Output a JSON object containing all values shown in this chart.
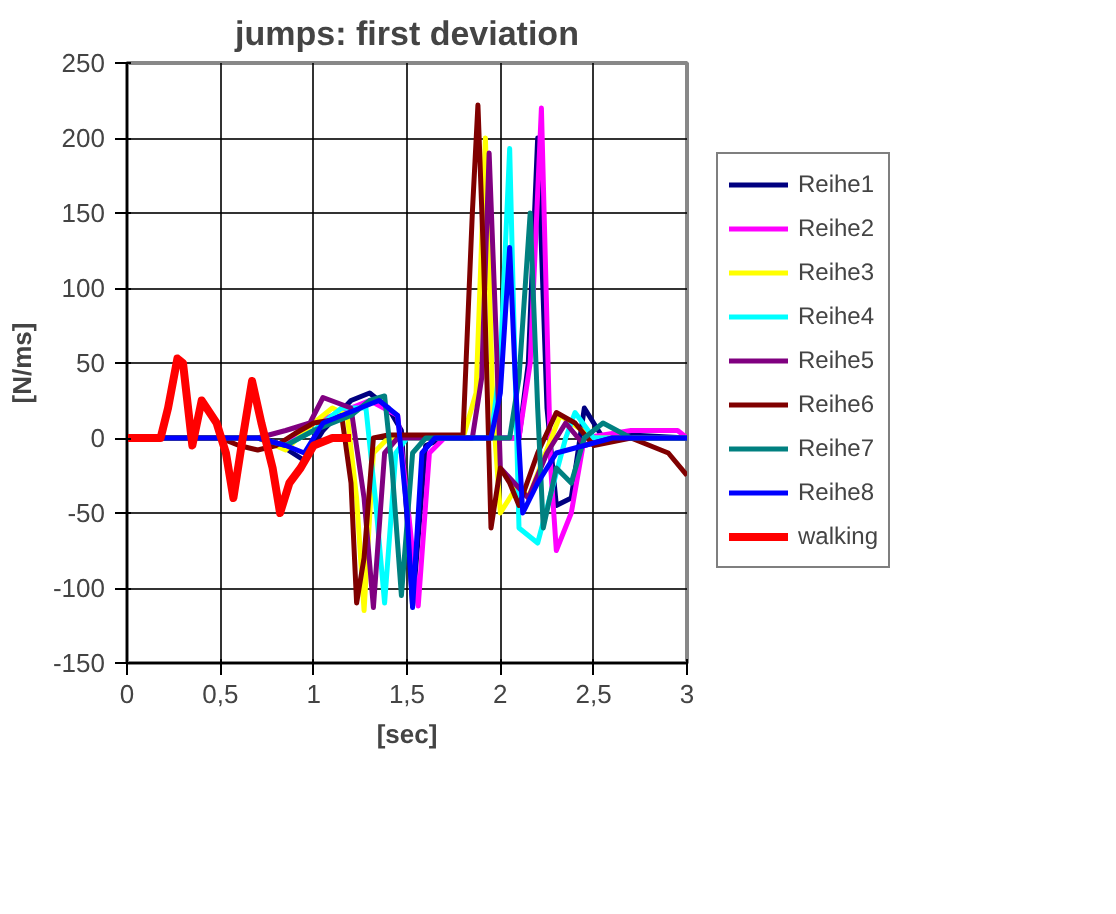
{
  "chart_data": {
    "type": "line",
    "title": "jumps: first deviation",
    "xlabel": "[sec]",
    "ylabel": "[N/ms]",
    "xlim": [
      0,
      3
    ],
    "ylim": [
      -150,
      250
    ],
    "xticks": [
      0,
      {
        "value": 0.5,
        "label": "0,5"
      },
      1,
      {
        "value": 1.5,
        "label": "1,5"
      },
      2,
      {
        "value": 2.5,
        "label": "2,5"
      },
      3
    ],
    "yticks": [
      -150,
      -100,
      -50,
      0,
      50,
      100,
      150,
      200,
      250
    ],
    "grid": true,
    "legend": "right",
    "marker": "none",
    "line_style": "solid",
    "series": [
      {
        "name": "Reihe1",
        "color": "#000080",
        "x": [
          0,
          0.7,
          0.8,
          0.95,
          1.05,
          1.2,
          1.3,
          1.4,
          1.47,
          1.53,
          1.6,
          1.7,
          2.1,
          2.15,
          2.2,
          2.25,
          2.3,
          2.38,
          2.45,
          2.55,
          2.7,
          3
        ],
        "values": [
          0,
          0,
          -3,
          -15,
          5,
          25,
          30,
          20,
          5,
          -112,
          -5,
          0,
          0,
          50,
          200,
          20,
          -45,
          -40,
          20,
          0,
          2,
          0
        ]
      },
      {
        "name": "Reihe2",
        "color": "#ff00ff",
        "x": [
          0,
          0.7,
          0.85,
          1.0,
          1.1,
          1.3,
          1.45,
          1.5,
          1.56,
          1.62,
          1.7,
          2.1,
          2.16,
          2.22,
          2.27,
          2.3,
          2.38,
          2.45,
          2.7,
          2.95,
          3
        ],
        "values": [
          0,
          0,
          -5,
          10,
          15,
          25,
          15,
          -40,
          -112,
          -10,
          0,
          0,
          50,
          220,
          -20,
          -75,
          -50,
          0,
          5,
          5,
          0
        ]
      },
      {
        "name": "Reihe3",
        "color": "#ffff00",
        "x": [
          0,
          0.7,
          0.85,
          1.0,
          1.1,
          1.18,
          1.23,
          1.27,
          1.32,
          1.4,
          1.8,
          1.87,
          1.92,
          1.96,
          2.0,
          2.1,
          2.15,
          2.32,
          2.5,
          3
        ],
        "values": [
          0,
          0,
          -8,
          10,
          20,
          15,
          -40,
          -115,
          -10,
          0,
          0,
          30,
          200,
          20,
          -50,
          -30,
          -40,
          15,
          0,
          0
        ]
      },
      {
        "name": "Reihe4",
        "color": "#00ffff",
        "x": [
          0.85,
          1.0,
          1.15,
          1.28,
          1.33,
          1.38,
          1.44,
          1.5,
          1.95,
          2.0,
          2.05,
          2.08,
          2.1,
          2.2,
          2.35,
          2.4,
          2.5,
          3
        ],
        "values": [
          -5,
          5,
          20,
          20,
          -40,
          -110,
          -10,
          0,
          0,
          50,
          193,
          40,
          -60,
          -70,
          0,
          17,
          0,
          0
        ]
      },
      {
        "name": "Reihe5",
        "color": "#800080",
        "x": [
          0,
          0.7,
          0.85,
          0.98,
          1.05,
          1.2,
          1.27,
          1.32,
          1.38,
          1.45,
          1.85,
          1.9,
          1.94,
          1.98,
          2.0,
          2.15,
          2.25,
          2.35,
          2.45,
          2.6,
          3
        ],
        "values": [
          0,
          0,
          5,
          10,
          27,
          20,
          -40,
          -113,
          -10,
          0,
          0,
          40,
          190,
          60,
          -20,
          -40,
          -10,
          10,
          -5,
          0,
          0
        ]
      },
      {
        "name": "Reihe6",
        "color": "#800000",
        "x": [
          0,
          0.5,
          0.6,
          0.7,
          0.8,
          0.9,
          1.0,
          1.1,
          1.15,
          1.2,
          1.23,
          1.27,
          1.32,
          1.4,
          1.8,
          1.85,
          1.88,
          1.91,
          1.95,
          2.0,
          2.05,
          2.1,
          2.2,
          2.3,
          2.4,
          2.5,
          2.7,
          2.8,
          2.9,
          3
        ],
        "values": [
          0,
          0,
          -5,
          -8,
          -5,
          3,
          10,
          12,
          15,
          -30,
          -110,
          -80,
          0,
          2,
          2,
          150,
          222,
          120,
          -60,
          -20,
          -30,
          -45,
          -10,
          17,
          10,
          -5,
          0,
          -5,
          -10,
          -25
        ]
      },
      {
        "name": "Reihe7",
        "color": "#008080",
        "x": [
          0,
          0.7,
          0.85,
          1.0,
          1.2,
          1.3,
          1.38,
          1.42,
          1.47,
          1.53,
          1.6,
          2.05,
          2.1,
          2.16,
          2.2,
          2.23,
          2.3,
          2.38,
          2.45,
          2.55,
          2.7,
          3
        ],
        "values": [
          0,
          0,
          -5,
          5,
          15,
          25,
          28,
          -20,
          -105,
          -10,
          0,
          0,
          40,
          150,
          20,
          -60,
          -20,
          -30,
          0,
          10,
          0,
          0
        ]
      },
      {
        "name": "Reihe8",
        "color": "#0000ff",
        "x": [
          0,
          0.7,
          0.85,
          0.95,
          1.05,
          1.15,
          1.25,
          1.35,
          1.45,
          1.5,
          1.53,
          1.58,
          1.65,
          1.95,
          2.0,
          2.05,
          2.08,
          2.12,
          2.2,
          2.3,
          2.6,
          3
        ],
        "values": [
          0,
          0,
          -5,
          -10,
          10,
          15,
          20,
          25,
          15,
          -50,
          -113,
          -10,
          0,
          0,
          30,
          127,
          40,
          -50,
          -30,
          -10,
          0,
          0
        ]
      },
      {
        "name": "walking",
        "color": "#ff0000",
        "x": [
          0,
          0.18,
          0.22,
          0.27,
          0.3,
          0.35,
          0.4,
          0.48,
          0.53,
          0.57,
          0.62,
          0.67,
          0.72,
          0.78,
          0.82,
          0.87,
          0.93,
          1.0,
          1.1,
          1.2
        ],
        "values": [
          0,
          0,
          20,
          53,
          50,
          -5,
          25,
          10,
          -10,
          -40,
          0,
          38,
          10,
          -20,
          -50,
          -30,
          -20,
          -5,
          0,
          0
        ]
      }
    ]
  }
}
